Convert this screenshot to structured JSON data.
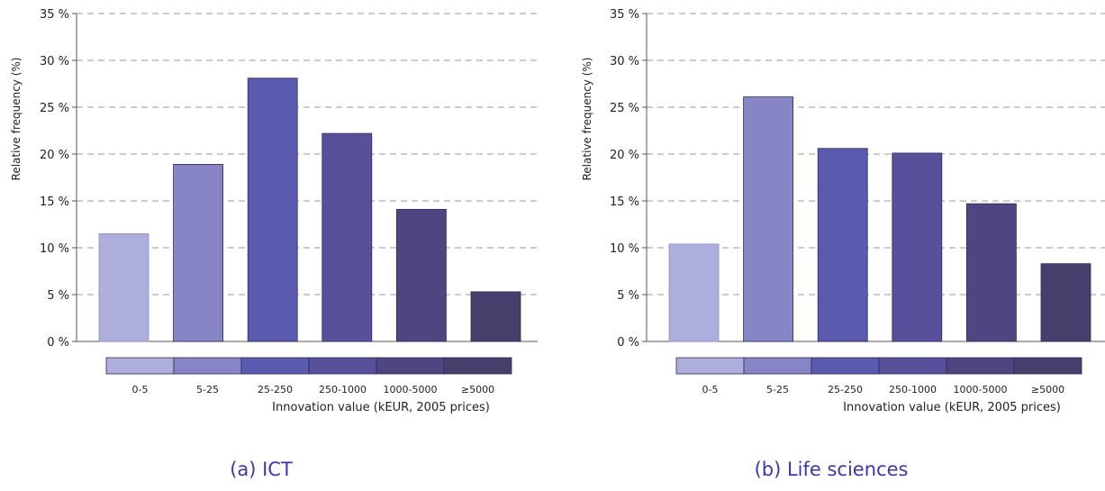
{
  "colors": [
    "#adaedb",
    "#8785c6",
    "#5a5aae",
    "#57509a",
    "#4f4580",
    "#473f6b"
  ],
  "chart_data": [
    {
      "type": "bar",
      "caption": "(a) ICT",
      "categories": [
        "0-5",
        "5-25",
        "25-250",
        "250-1000",
        "1000-5000",
        "≥5000"
      ],
      "values": [
        11.5,
        18.9,
        28.1,
        22.2,
        14.1,
        5.3
      ],
      "xlabel": "Innovation value (kEUR, 2005 prices)",
      "ylabel": "Relative frequency (%)",
      "yticks": [
        "0 %",
        "5 %",
        "10 %",
        "15 %",
        "20 %",
        "25 %",
        "30 %",
        "35 %"
      ],
      "ylim": [
        0,
        35
      ],
      "grid": true
    },
    {
      "type": "bar",
      "caption": "(b) Life sciences",
      "categories": [
        "0-5",
        "5-25",
        "25-250",
        "250-1000",
        "1000-5000",
        "≥5000"
      ],
      "values": [
        10.4,
        26.1,
        20.6,
        20.1,
        14.7,
        8.3
      ],
      "xlabel": "Innovation value (kEUR, 2005 prices)",
      "ylabel": "Relative frequency (%)",
      "yticks": [
        "0 %",
        "5 %",
        "10 %",
        "15 %",
        "20 %",
        "25 %",
        "30 %",
        "35 %"
      ],
      "ylim": [
        0,
        35
      ],
      "grid": true
    }
  ]
}
